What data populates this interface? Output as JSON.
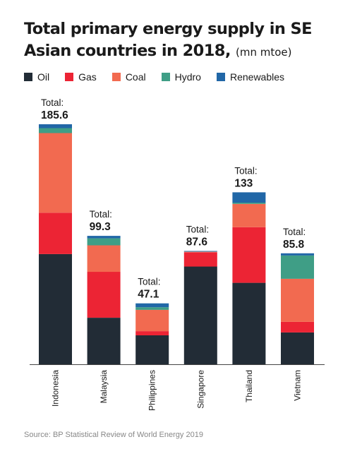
{
  "title_main": "Total primary energy supply in SE Asian countries in 2018,",
  "title_unit": "(mn mtoe)",
  "legend": [
    {
      "label": "Oil",
      "color": "#222c36"
    },
    {
      "label": "Gas",
      "color": "#ec2434"
    },
    {
      "label": "Coal",
      "color": "#f26a50"
    },
    {
      "label": "Hydro",
      "color": "#3f9e86"
    },
    {
      "label": "Renewables",
      "color": "#2167a7"
    }
  ],
  "total_prefix": "Total:",
  "source": "Source: BP Statistical Review of World Energy 2019",
  "chart_data": {
    "type": "bar",
    "stacked": true,
    "categories": [
      "Indonesia",
      "Malaysia",
      "Philippines",
      "Singapore",
      "Thailand",
      "Vietnam"
    ],
    "series": [
      {
        "name": "Oil",
        "values": [
          85.2,
          36.0,
          22.4,
          75.6,
          63.0,
          24.6
        ]
      },
      {
        "name": "Gas",
        "values": [
          32.0,
          35.5,
          3.2,
          11.0,
          43.0,
          8.2
        ]
      },
      {
        "name": "Coal",
        "values": [
          61.6,
          20.5,
          16.5,
          0.4,
          18.0,
          33.3
        ]
      },
      {
        "name": "Hydro",
        "values": [
          3.8,
          5.4,
          2.0,
          0.1,
          1.0,
          18.0
        ]
      },
      {
        "name": "Renewables",
        "values": [
          3.0,
          1.9,
          3.0,
          0.5,
          8.0,
          1.7
        ]
      }
    ],
    "totals": [
      "185.6",
      "99.3",
      "47.1",
      "87.6",
      "133",
      "85.8"
    ],
    "ylim": [
      0,
      185.6
    ],
    "grid": false,
    "legend_position": "top"
  }
}
